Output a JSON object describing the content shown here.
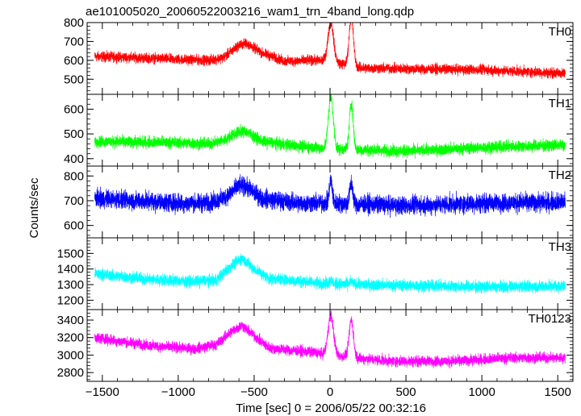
{
  "chart_data": {
    "type": "line",
    "title": "ae101005020_20060522003216_wam1_trn_4band_long.qdp",
    "xlabel": "Time [sec] 0 = 2006/05/22 00:32:16",
    "ylabel": "Counts/sec",
    "xlim": [
      -1600,
      1600
    ],
    "x_ticks": [
      -1500,
      -1000,
      -500,
      0,
      500,
      1000,
      1500
    ],
    "x_tick_labels": [
      "−1500",
      "−1000",
      "−500",
      "0",
      "500",
      "1000",
      "1500"
    ],
    "x_range": [
      -1550,
      1550
    ],
    "panels": [
      {
        "name": "TH0",
        "color": "#ff0000",
        "ylim": [
          420,
          800
        ],
        "y_ticks": [
          500,
          600,
          700,
          800
        ],
        "baseline": [
          [
            -1550,
            620
          ],
          [
            -1300,
            615
          ],
          [
            -1000,
            605
          ],
          [
            -800,
            600
          ],
          [
            -700,
            615
          ],
          [
            -600,
            680
          ],
          [
            -550,
            690
          ],
          [
            -450,
            640
          ],
          [
            -300,
            595
          ],
          [
            -100,
            600
          ],
          [
            0,
            595
          ],
          [
            200,
            560
          ],
          [
            500,
            555
          ],
          [
            1000,
            550
          ],
          [
            1550,
            530
          ]
        ],
        "noise_halfwidth": 40,
        "peaks": [
          [
            5,
            800,
            18
          ],
          [
            140,
            830,
            14
          ]
        ]
      },
      {
        "name": "TH1",
        "color": "#00ff00",
        "ylim": [
          370,
          660
        ],
        "y_ticks": [
          400,
          500,
          600
        ],
        "baseline": [
          [
            -1550,
            470
          ],
          [
            -1000,
            465
          ],
          [
            -800,
            460
          ],
          [
            -700,
            475
          ],
          [
            -600,
            510
          ],
          [
            -550,
            510
          ],
          [
            -450,
            470
          ],
          [
            -200,
            450
          ],
          [
            0,
            440
          ],
          [
            500,
            430
          ],
          [
            1000,
            445
          ],
          [
            1550,
            455
          ]
        ],
        "noise_halfwidth": 35,
        "peaks": [
          [
            5,
            650,
            16
          ],
          [
            140,
            625,
            12
          ]
        ]
      },
      {
        "name": "TH2",
        "color": "#0000ff",
        "ylim": [
          550,
          840
        ],
        "y_ticks": [
          600,
          700,
          800
        ],
        "baseline": [
          [
            -1550,
            710
          ],
          [
            -1000,
            690
          ],
          [
            -800,
            690
          ],
          [
            -700,
            710
          ],
          [
            -600,
            760
          ],
          [
            -550,
            755
          ],
          [
            -450,
            710
          ],
          [
            -200,
            690
          ],
          [
            0,
            690
          ],
          [
            500,
            680
          ],
          [
            1000,
            690
          ],
          [
            1550,
            695
          ]
        ],
        "noise_halfwidth": 55,
        "peaks": [
          [
            5,
            780,
            10
          ],
          [
            140,
            770,
            10
          ]
        ]
      },
      {
        "name": "TH3",
        "color": "#00ffff",
        "ylim": [
          1140,
          1600
        ],
        "y_ticks": [
          1200,
          1300,
          1400,
          1500
        ],
        "baseline": [
          [
            -1550,
            1370
          ],
          [
            -1200,
            1335
          ],
          [
            -900,
            1320
          ],
          [
            -750,
            1330
          ],
          [
            -650,
            1420
          ],
          [
            -580,
            1470
          ],
          [
            -500,
            1400
          ],
          [
            -400,
            1340
          ],
          [
            0,
            1305
          ],
          [
            500,
            1295
          ],
          [
            1000,
            1285
          ],
          [
            1550,
            1290
          ]
        ],
        "noise_halfwidth": 55,
        "peaks": [
          [
            5,
            1330,
            10
          ],
          [
            140,
            1320,
            10
          ]
        ]
      },
      {
        "name": "TH0123",
        "color": "#ff00ff",
        "ylim": [
          2700,
          3520
        ],
        "y_ticks": [
          2800,
          3000,
          3200,
          3400
        ],
        "baseline": [
          [
            -1550,
            3200
          ],
          [
            -1200,
            3110
          ],
          [
            -900,
            3070
          ],
          [
            -750,
            3120
          ],
          [
            -650,
            3270
          ],
          [
            -580,
            3340
          ],
          [
            -500,
            3220
          ],
          [
            -400,
            3080
          ],
          [
            -100,
            3030
          ],
          [
            0,
            3000
          ],
          [
            400,
            2930
          ],
          [
            800,
            2930
          ],
          [
            1200,
            2970
          ],
          [
            1550,
            2970
          ]
        ],
        "noise_halfwidth": 90,
        "peaks": [
          [
            5,
            3450,
            18
          ],
          [
            140,
            3400,
            14
          ]
        ]
      }
    ]
  }
}
